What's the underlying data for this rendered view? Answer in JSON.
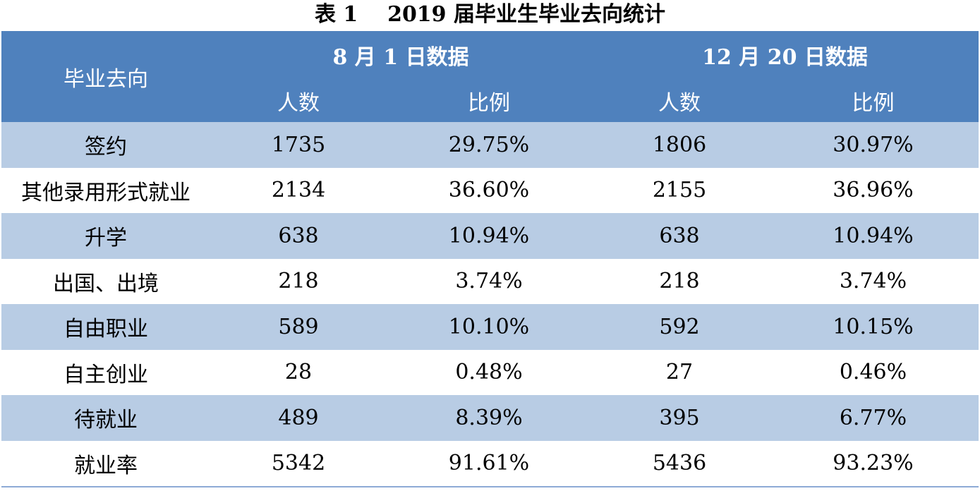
{
  "caption": "表 1    2019 届毕业生毕业去向统计",
  "header": {
    "direction": "毕业去向",
    "group1": "8 月 1 日数据",
    "group2": "12 月 20 日数据",
    "count": "人数",
    "ratio": "比例"
  },
  "rows": [
    {
      "label": "签约",
      "count1": "1735",
      "ratio1": "29.75%",
      "count2": "1806",
      "ratio2": "30.97%"
    },
    {
      "label": "其他录用形式就业",
      "count1": "2134",
      "ratio1": "36.60%",
      "count2": "2155",
      "ratio2": "36.96%"
    },
    {
      "label": "升学",
      "count1": "638",
      "ratio1": "10.94%",
      "count2": "638",
      "ratio2": "10.94%"
    },
    {
      "label": "出国、出境",
      "count1": "218",
      "ratio1": "3.74%",
      "count2": "218",
      "ratio2": "3.74%"
    },
    {
      "label": "自由职业",
      "count1": "589",
      "ratio1": "10.10%",
      "count2": "592",
      "ratio2": "10.15%"
    },
    {
      "label": "自主创业",
      "count1": "28",
      "ratio1": "0.48%",
      "count2": "27",
      "ratio2": "0.46%"
    },
    {
      "label": "待就业",
      "count1": "489",
      "ratio1": "8.39%",
      "count2": "395",
      "ratio2": "6.77%"
    },
    {
      "label": "就业率",
      "count1": "5342",
      "ratio1": "91.61%",
      "count2": "5436",
      "ratio2": "93.23%"
    }
  ],
  "colors": {
    "header_bg": "#4f81bd",
    "band_bg": "#b8cce4",
    "header_text": "#ffffff"
  }
}
